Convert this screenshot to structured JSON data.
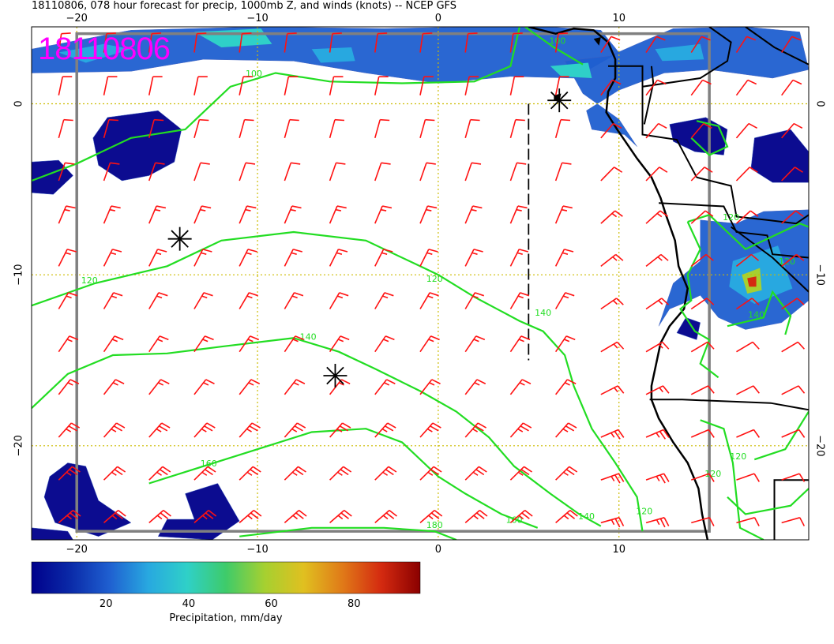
{
  "title": "18110806, 078 hour forecast for precip, 1000mb Z, and winds (knots) -- NCEP GFS",
  "stamp": "18110806",
  "map": {
    "lon_range": [
      -22.5,
      20.5
    ],
    "lat_range": [
      -25.5,
      4.5
    ],
    "lon_ticks": [
      {
        "value": -20,
        "label": "−20"
      },
      {
        "value": -10,
        "label": "−10"
      },
      {
        "value": 0,
        "label": "0"
      },
      {
        "value": 10,
        "label": "10"
      }
    ],
    "lat_ticks": [
      {
        "value": 0,
        "label": "0"
      },
      {
        "value": -10,
        "label": "−10"
      },
      {
        "value": -20,
        "label": "−20"
      }
    ],
    "contour_labels": [
      "100",
      "100",
      "120",
      "120",
      "140",
      "140",
      "160",
      "160",
      "180",
      "120",
      "140",
      "120",
      "120",
      "120",
      "140",
      "120"
    ],
    "stars": [
      {
        "lon": 6.7,
        "lat": 0.2
      },
      {
        "lon": -14.3,
        "lat": -7.9
      },
      {
        "lon": -5.7,
        "lat": -15.9
      }
    ],
    "colors": {
      "contour": "#22dd22",
      "barb": "#ff1111",
      "coast": "#000000",
      "grid": "#ccbb00",
      "box": "#808080"
    }
  },
  "colorbar": {
    "label": "Precipitation, mm/day",
    "ticks": [
      "20",
      "40",
      "60",
      "80"
    ],
    "tick_values": [
      20,
      40,
      60,
      80
    ],
    "range": [
      2,
      96
    ],
    "colors": [
      "#00008b",
      "#0a2aa8",
      "#1f5fd0",
      "#28a8e0",
      "#2fd0c8",
      "#3ecb6a",
      "#a6d030",
      "#e0c020",
      "#e07a18",
      "#d42a10",
      "#8a0000"
    ]
  }
}
